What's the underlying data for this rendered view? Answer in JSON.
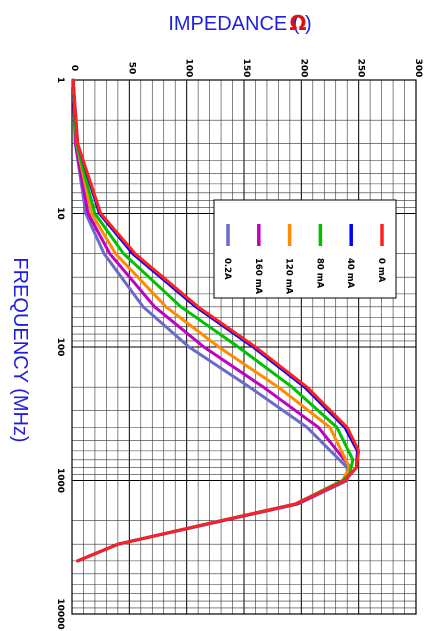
{
  "chart_data": {
    "type": "line",
    "title": "",
    "ylabel": "IMPEDANCE ( )",
    "ylabel_unit_symbol": "Ω",
    "xlabel": "FREQUENCY (MHz)",
    "x_scale": "log",
    "xlim": [
      1,
      10000
    ],
    "ylim": [
      0,
      300
    ],
    "x_ticks": [
      "1",
      "10",
      "100",
      "1000",
      "10000"
    ],
    "y_ticks": [
      "0",
      "50",
      "100",
      "150",
      "200",
      "250",
      "300"
    ],
    "grid": true,
    "legend_position": "upper-right (rotated chart)",
    "orientation": "rotated 90° clockwise",
    "series": [
      {
        "name": "0 mA",
        "color": "#ff2020",
        "points": [
          [
            1,
            1
          ],
          [
            3,
            5
          ],
          [
            10,
            25
          ],
          [
            20,
            55
          ],
          [
            50,
            110
          ],
          [
            100,
            160
          ],
          [
            200,
            205
          ],
          [
            400,
            240
          ],
          [
            600,
            250
          ],
          [
            800,
            248
          ],
          [
            1000,
            238
          ],
          [
            1500,
            195
          ],
          [
            2000,
            130
          ],
          [
            3000,
            40
          ],
          [
            4000,
            5
          ]
        ]
      },
      {
        "name": "40 mA",
        "color": "#0000ff",
        "points": [
          [
            1,
            1
          ],
          [
            3,
            5
          ],
          [
            10,
            24
          ],
          [
            20,
            53
          ],
          [
            50,
            108
          ],
          [
            100,
            158
          ],
          [
            200,
            203
          ],
          [
            400,
            238
          ],
          [
            600,
            249
          ],
          [
            800,
            248
          ],
          [
            1000,
            238
          ],
          [
            1500,
            195
          ],
          [
            2000,
            130
          ],
          [
            3000,
            40
          ],
          [
            4000,
            5
          ]
        ]
      },
      {
        "name": "80 mA",
        "color": "#00c000",
        "points": [
          [
            1,
            1
          ],
          [
            3,
            4
          ],
          [
            10,
            20
          ],
          [
            20,
            45
          ],
          [
            50,
            95
          ],
          [
            100,
            145
          ],
          [
            200,
            192
          ],
          [
            400,
            231
          ],
          [
            700,
            245
          ],
          [
            900,
            242
          ],
          [
            1000,
            236
          ],
          [
            1500,
            195
          ],
          [
            2000,
            130
          ],
          [
            3000,
            40
          ],
          [
            4000,
            5
          ]
        ]
      },
      {
        "name": "120 mA",
        "color": "#ff8c00",
        "points": [
          [
            1,
            1
          ],
          [
            3,
            4
          ],
          [
            10,
            17
          ],
          [
            20,
            38
          ],
          [
            50,
            82
          ],
          [
            100,
            128
          ],
          [
            200,
            180
          ],
          [
            400,
            225
          ],
          [
            800,
            242
          ],
          [
            1000,
            236
          ],
          [
            1500,
            195
          ],
          [
            2000,
            130
          ],
          [
            3000,
            40
          ],
          [
            4000,
            5
          ]
        ]
      },
      {
        "name": "160 mA",
        "color": "#c000c0",
        "points": [
          [
            1,
            1
          ],
          [
            3,
            3
          ],
          [
            10,
            14
          ],
          [
            20,
            33
          ],
          [
            50,
            72
          ],
          [
            100,
            115
          ],
          [
            200,
            167
          ],
          [
            400,
            215
          ],
          [
            800,
            243
          ],
          [
            1000,
            238
          ],
          [
            1500,
            196
          ],
          [
            2000,
            131
          ],
          [
            3000,
            40
          ],
          [
            4000,
            5
          ]
        ]
      },
      {
        "name": "0.2A",
        "color": "#6a6ac8",
        "points": [
          [
            1,
            1
          ],
          [
            3,
            3
          ],
          [
            10,
            12
          ],
          [
            20,
            28
          ],
          [
            50,
            62
          ],
          [
            100,
            102
          ],
          [
            200,
            155
          ],
          [
            400,
            205
          ],
          [
            800,
            240
          ],
          [
            1000,
            240
          ],
          [
            1500,
            197
          ],
          [
            2000,
            132
          ],
          [
            3000,
            40
          ],
          [
            4000,
            5
          ]
        ]
      }
    ]
  }
}
